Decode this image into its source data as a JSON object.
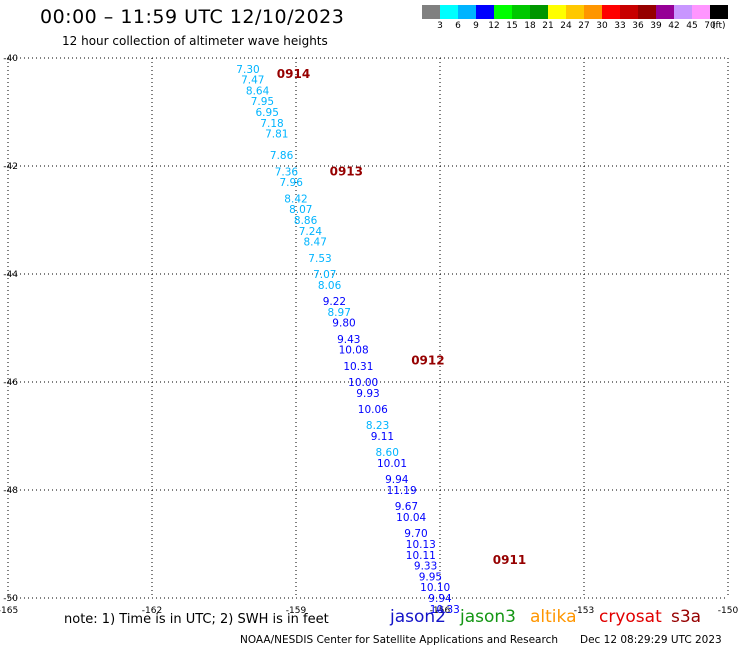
{
  "header": {
    "title": "00:00 – 11:59 UTC 12/10/2023",
    "subtitle": "12 hour collection of altimeter wave heights"
  },
  "colorbar": {
    "colors": [
      "#808080",
      "#00ffff",
      "#00b4ff",
      "#0000ff",
      "#00ff00",
      "#00c800",
      "#009600",
      "#ffff00",
      "#ffc800",
      "#ff9600",
      "#ff0000",
      "#c80000",
      "#960000",
      "#960096",
      "#c896ff",
      "#ff96ff",
      "#000000"
    ],
    "labels": [
      "3",
      "6",
      "9",
      "12",
      "15",
      "18",
      "21",
      "24",
      "27",
      "30",
      "33",
      "36",
      "39",
      "42",
      "45",
      "70"
    ],
    "unit": "(ft)"
  },
  "chart_data": {
    "type": "scatter",
    "xlim": [
      -165,
      -150
    ],
    "ylim": [
      -50,
      -40
    ],
    "grid": true,
    "x_ticks": [
      {
        "v": -165,
        "label": "-165"
      },
      {
        "v": -162,
        "label": "-162"
      },
      {
        "v": -159,
        "label": "-159"
      },
      {
        "v": -156,
        "label": "-156"
      },
      {
        "v": -153,
        "label": "-153"
      },
      {
        "v": -150,
        "label": "-150"
      }
    ],
    "y_ticks": [
      {
        "v": -40,
        "label": "-40"
      },
      {
        "v": -42,
        "label": "-42"
      },
      {
        "v": -44,
        "label": "-44"
      },
      {
        "v": -46,
        "label": "-46"
      },
      {
        "v": -48,
        "label": "-48"
      },
      {
        "v": -50,
        "label": "-50"
      }
    ],
    "series": [
      {
        "name": "jason2",
        "color": "#1414c8"
      },
      {
        "name": "jason3",
        "color": "#149614"
      },
      {
        "name": "altika",
        "color": "#ff9600"
      },
      {
        "name": "cryosat",
        "color": "#e10000"
      },
      {
        "name": "s3a",
        "color": "#960000"
      }
    ],
    "observations": [
      {
        "lon": -160.0,
        "lat": -40.2,
        "swh": "7.30",
        "color": "#00b4ff"
      },
      {
        "lon": -159.9,
        "lat": -40.4,
        "swh": "7.47",
        "color": "#00b4ff"
      },
      {
        "lon": -159.8,
        "lat": -40.6,
        "swh": "8.64",
        "color": "#00b4ff"
      },
      {
        "lon": -159.7,
        "lat": -40.8,
        "swh": "7.95",
        "color": "#00b4ff"
      },
      {
        "lon": -159.6,
        "lat": -41.0,
        "swh": "6.95",
        "color": "#00b4ff"
      },
      {
        "lon": -159.5,
        "lat": -41.2,
        "swh": "7.18",
        "color": "#00b4ff"
      },
      {
        "lon": -159.4,
        "lat": -41.4,
        "swh": "7.81",
        "color": "#00b4ff"
      },
      {
        "lon": -159.3,
        "lat": -41.8,
        "swh": "7.86",
        "color": "#00b4ff"
      },
      {
        "lon": -159.2,
        "lat": -42.1,
        "swh": "7.36",
        "color": "#00b4ff"
      },
      {
        "lon": -159.1,
        "lat": -42.3,
        "swh": "7.96",
        "color": "#00b4ff"
      },
      {
        "lon": -159.0,
        "lat": -42.6,
        "swh": "8.42",
        "color": "#00b4ff"
      },
      {
        "lon": -158.9,
        "lat": -42.8,
        "swh": "8.07",
        "color": "#00b4ff"
      },
      {
        "lon": -158.8,
        "lat": -43.0,
        "swh": "8.86",
        "color": "#00b4ff"
      },
      {
        "lon": -158.7,
        "lat": -43.2,
        "swh": "7.24",
        "color": "#00b4ff"
      },
      {
        "lon": -158.6,
        "lat": -43.4,
        "swh": "8.47",
        "color": "#00b4ff"
      },
      {
        "lon": -158.5,
        "lat": -43.7,
        "swh": "7.53",
        "color": "#00b4ff"
      },
      {
        "lon": -158.4,
        "lat": -44.0,
        "swh": "7.07",
        "color": "#00b4ff"
      },
      {
        "lon": -158.3,
        "lat": -44.2,
        "swh": "8.06",
        "color": "#00b4ff"
      },
      {
        "lon": -158.2,
        "lat": -44.5,
        "swh": "9.22",
        "color": "#0000ff"
      },
      {
        "lon": -158.1,
        "lat": -44.7,
        "swh": "8.97",
        "color": "#00b4ff"
      },
      {
        "lon": -158.0,
        "lat": -44.9,
        "swh": "9.80",
        "color": "#0000ff"
      },
      {
        "lon": -157.9,
        "lat": -45.2,
        "swh": "9.43",
        "color": "#0000ff"
      },
      {
        "lon": -157.8,
        "lat": -45.4,
        "swh": "10.08",
        "color": "#0000ff"
      },
      {
        "lon": -157.7,
        "lat": -45.7,
        "swh": "10.31",
        "color": "#0000ff"
      },
      {
        "lon": -157.6,
        "lat": -46.0,
        "swh": "10.00",
        "color": "#0000ff"
      },
      {
        "lon": -157.5,
        "lat": -46.2,
        "swh": "9.93",
        "color": "#0000ff"
      },
      {
        "lon": -157.4,
        "lat": -46.5,
        "swh": "10.06",
        "color": "#0000ff"
      },
      {
        "lon": -157.3,
        "lat": -46.8,
        "swh": "8.23",
        "color": "#00b4ff"
      },
      {
        "lon": -157.2,
        "lat": -47.0,
        "swh": "9.11",
        "color": "#0000ff"
      },
      {
        "lon": -157.1,
        "lat": -47.3,
        "swh": "8.60",
        "color": "#00b4ff"
      },
      {
        "lon": -157.0,
        "lat": -47.5,
        "swh": "10.01",
        "color": "#0000ff"
      },
      {
        "lon": -156.9,
        "lat": -47.8,
        "swh": "9.94",
        "color": "#0000ff"
      },
      {
        "lon": -156.8,
        "lat": -48.0,
        "swh": "11.19",
        "color": "#0000ff"
      },
      {
        "lon": -156.7,
        "lat": -48.3,
        "swh": "9.67",
        "color": "#0000ff"
      },
      {
        "lon": -156.6,
        "lat": -48.5,
        "swh": "10.04",
        "color": "#0000ff"
      },
      {
        "lon": -156.5,
        "lat": -48.8,
        "swh": "9.70",
        "color": "#0000ff"
      },
      {
        "lon": -156.4,
        "lat": -49.0,
        "swh": "10.13",
        "color": "#0000ff"
      },
      {
        "lon": -156.4,
        "lat": -49.2,
        "swh": "10.11",
        "color": "#0000ff"
      },
      {
        "lon": -156.3,
        "lat": -49.4,
        "swh": "9.33",
        "color": "#0000ff"
      },
      {
        "lon": -156.2,
        "lat": -49.6,
        "swh": "9.95",
        "color": "#0000ff"
      },
      {
        "lon": -156.1,
        "lat": -49.8,
        "swh": "10.10",
        "color": "#0000ff"
      },
      {
        "lon": -156.0,
        "lat": -50.0,
        "swh": "9.94",
        "color": "#0000ff"
      },
      {
        "lon": -155.9,
        "lat": -50.2,
        "swh": "10.33",
        "color": "#0000ff"
      }
    ],
    "time_labels": [
      {
        "lon": -159.4,
        "lat": -40.3,
        "label": "0914"
      },
      {
        "lon": -158.3,
        "lat": -42.1,
        "label": "0913"
      },
      {
        "lon": -156.6,
        "lat": -45.6,
        "label": "0912"
      },
      {
        "lon": -154.9,
        "lat": -49.3,
        "label": "0911"
      }
    ]
  },
  "footer": {
    "note": "note:  1) Time is in UTC; 2) SWH is in feet",
    "credit": "NOAA/NESDIS Center for Satellite Applications and Research",
    "timestamp": "Dec 12 08:29:29 UTC 2023"
  }
}
